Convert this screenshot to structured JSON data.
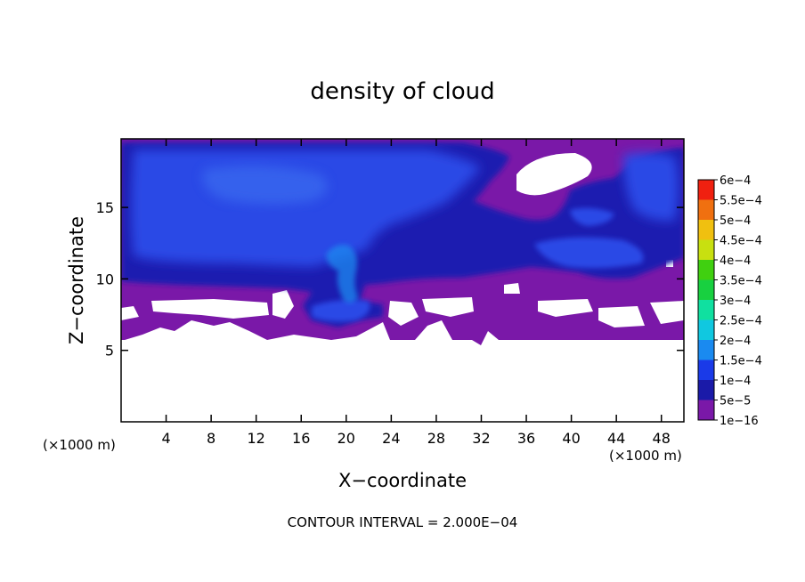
{
  "chart_data": {
    "type": "heatmap",
    "title": "density of cloud",
    "xlabel": "X−coordinate",
    "ylabel": "Z−coordinate",
    "x_unit_left": "(×1000 m)",
    "x_unit_right": "(×1000 m)",
    "footer": "CONTOUR INTERVAL = 2.000E−04",
    "xlim": [
      0,
      50
    ],
    "ylim": [
      0,
      19.8
    ],
    "x_ticks": [
      4,
      8,
      12,
      16,
      20,
      24,
      28,
      32,
      36,
      40,
      44,
      48
    ],
    "y_ticks": [
      5,
      10,
      15
    ],
    "colorbar": {
      "labels": [
        "1e−16",
        "5e−5",
        "1e−4",
        "1.5e−4",
        "2e−4",
        "2.5e−4",
        "3e−4",
        "3.5e−4",
        "4e−4",
        "4.5e−4",
        "5e−4",
        "5.5e−4",
        "6e−4"
      ],
      "colors": [
        "#7a18a8",
        "#1a1aa8",
        "#1a3ae8",
        "#1a8af0",
        "#10c8e0",
        "#10e0a0",
        "#18d040",
        "#40d010",
        "#c8e010",
        "#f0c010",
        "#f07010",
        "#f02010",
        "#f07070"
      ]
    }
  }
}
